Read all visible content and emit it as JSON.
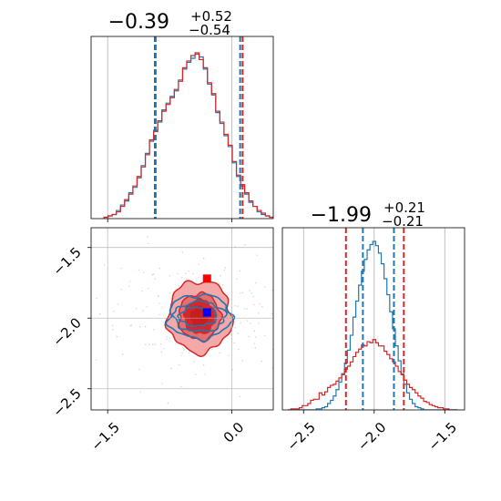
{
  "chart_data": {
    "type": "corner",
    "parameters": [
      {
        "title": {
          "median": "−0.39",
          "plus": "+0.52",
          "minus": "−0.54"
        },
        "range": [
          -1.7,
          0.5
        ],
        "ticks": [
          {
            "value": -1.5,
            "label": "−1.5"
          },
          {
            "value": 0.0,
            "label": "0.0"
          }
        ],
        "quantile_lines": [
          {
            "series": "red",
            "values": [
              -0.93,
              0.13
            ]
          },
          {
            "series": "blue",
            "values": [
              -0.92,
              0.1
            ]
          }
        ]
      },
      {
        "title": {
          "median": "−1.99",
          "plus": "+0.21",
          "minus": "−0.21"
        },
        "range": [
          -2.65,
          -1.36
        ],
        "ticks": [
          {
            "value": -2.5,
            "label": "−2.5"
          },
          {
            "value": -2.0,
            "label": "−2.0"
          },
          {
            "value": -1.5,
            "label": "−1.5"
          }
        ],
        "quantile_lines": [
          {
            "series": "red",
            "values": [
              -2.2,
              -1.79
            ]
          },
          {
            "series": "blue",
            "values": [
              -2.08,
              -1.86
            ]
          }
        ]
      }
    ],
    "joint_y_ticks": [
      {
        "value": -1.5,
        "label": "−1.5"
      },
      {
        "value": -2.0,
        "label": "−2.0"
      },
      {
        "value": -2.5,
        "label": "−2.5"
      }
    ],
    "marginal_1": {
      "x": [
        -1.52,
        -1.47,
        -1.42,
        -1.37,
        -1.32,
        -1.27,
        -1.22,
        -1.17,
        -1.12,
        -1.07,
        -1.02,
        -0.97,
        -0.92,
        -0.87,
        -0.82,
        -0.77,
        -0.72,
        -0.67,
        -0.62,
        -0.57,
        -0.52,
        -0.47,
        -0.42,
        -0.37,
        -0.32,
        -0.27,
        -0.22,
        -0.17,
        -0.12,
        -0.07,
        -0.02,
        0.03,
        0.08,
        0.13,
        0.18,
        0.23,
        0.28,
        0.33,
        0.38,
        0.43,
        0.48
      ],
      "red": [
        1,
        2,
        3,
        5,
        9,
        14,
        18,
        24,
        31,
        38,
        47,
        58,
        64,
        72,
        79,
        84,
        89,
        95,
        101,
        111,
        116,
        120,
        122,
        117,
        111,
        100,
        92,
        79,
        71,
        62,
        54,
        42,
        32,
        25,
        19,
        13,
        9,
        6,
        4,
        2,
        1
      ],
      "blue": [
        1,
        2,
        3,
        6,
        10,
        13,
        19,
        23,
        30,
        39,
        48,
        57,
        65,
        71,
        80,
        85,
        90,
        94,
        102,
        110,
        115,
        118,
        121,
        119,
        110,
        99,
        91,
        78,
        70,
        61,
        53,
        41,
        31,
        24,
        18,
        12,
        9,
        5,
        3,
        2,
        1
      ]
    },
    "marginal_2": {
      "x": [
        -2.6,
        -2.58,
        -2.56,
        -2.54,
        -2.52,
        -2.5,
        -2.48,
        -2.46,
        -2.44,
        -2.42,
        -2.4,
        -2.38,
        -2.36,
        -2.34,
        -2.32,
        -2.3,
        -2.28,
        -2.26,
        -2.24,
        -2.22,
        -2.2,
        -2.18,
        -2.16,
        -2.14,
        -2.12,
        -2.1,
        -2.08,
        -2.06,
        -2.04,
        -2.02,
        -2.0,
        -1.98,
        -1.96,
        -1.94,
        -1.92,
        -1.9,
        -1.88,
        -1.86,
        -1.84,
        -1.82,
        -1.8,
        -1.78,
        -1.76,
        -1.74,
        -1.72,
        -1.7,
        -1.68,
        -1.66,
        -1.64,
        -1.62,
        -1.6,
        -1.58,
        -1.56,
        -1.54,
        -1.52,
        -1.5,
        -1.48,
        -1.46,
        -1.44,
        -1.42
      ],
      "red": [
        0,
        1,
        1,
        1,
        2,
        4,
        4,
        6,
        9,
        10,
        10,
        16,
        14,
        17,
        21,
        23,
        24,
        27,
        30,
        33,
        38,
        41,
        45,
        50,
        54,
        57,
        61,
        60,
        64,
        63,
        66,
        63,
        60,
        60,
        55,
        52,
        48,
        45,
        41,
        36,
        33,
        28,
        24,
        21,
        19,
        16,
        13,
        11,
        8,
        7,
        5,
        4,
        3,
        2,
        2,
        1,
        1,
        0,
        0,
        0
      ],
      "blue": [
        0,
        0,
        0,
        0,
        0,
        0,
        0,
        0,
        0,
        0,
        1,
        1,
        2,
        3,
        6,
        9,
        13,
        19,
        26,
        34,
        44,
        56,
        70,
        87,
        102,
        117,
        130,
        141,
        150,
        155,
        158,
        154,
        147,
        137,
        123,
        108,
        92,
        76,
        60,
        46,
        34,
        24,
        16,
        10,
        6,
        3,
        2,
        1,
        0,
        0,
        0,
        0,
        0,
        0,
        0,
        0,
        0,
        0,
        0,
        0
      ]
    },
    "joint": {
      "red_marker": {
        "x": -0.3,
        "y": -1.72
      },
      "blue_marker": {
        "x": -0.3,
        "y": -1.96
      },
      "red_levels": [
        {
          "cx": -0.39,
          "cy": -1.99,
          "rx": 0.77,
          "ry": 0.51,
          "fill": "#f4a3a3",
          "opacity": 0.95
        },
        {
          "cx": -0.39,
          "cy": -1.99,
          "rx": 0.5,
          "ry": 0.33,
          "fill": "#e46b6b",
          "opacity": 0.95
        },
        {
          "cx": -0.39,
          "cy": -1.99,
          "rx": 0.37,
          "ry": 0.24,
          "fill": "#d62728",
          "opacity": 1.0
        },
        {
          "cx": -0.39,
          "cy": -1.99,
          "rx": 0.24,
          "ry": 0.16,
          "fill": "#c81e1e",
          "opacity": 1.0
        }
      ],
      "blue_levels": [
        {
          "cx": -0.39,
          "cy": -1.99,
          "rx": 0.76,
          "ry": 0.31
        },
        {
          "cx": -0.39,
          "cy": -1.99,
          "rx": 0.62,
          "ry": 0.21
        },
        {
          "cx": -0.41,
          "cy": -1.99,
          "rx": 0.46,
          "ry": 0.13
        }
      ]
    },
    "colors": {
      "red": "#d62728",
      "blue": "#1f77b4",
      "red_marker": "#ff0000",
      "blue_marker": "#0000ff",
      "grid": "#b0b0b0"
    },
    "grid": true
  }
}
